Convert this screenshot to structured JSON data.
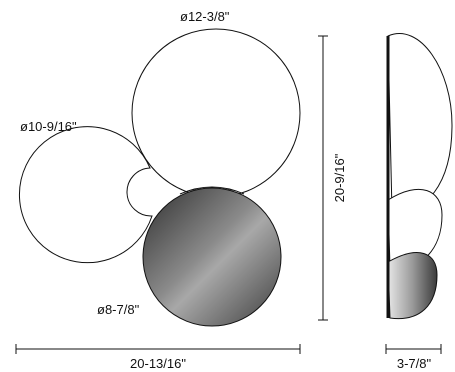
{
  "dimensions": {
    "large_diameter": "ø12-3/8\"",
    "medium_diameter": "ø10-9/16\"",
    "small_diameter": "ø8-7/8\"",
    "overall_height": "20-9/16\"",
    "overall_width": "20-13/16\"",
    "depth": "3-7/8\""
  },
  "colors": {
    "line": "#111111",
    "mirror_light": "#c9c9c9",
    "mirror_dark": "#3a3a3a"
  }
}
